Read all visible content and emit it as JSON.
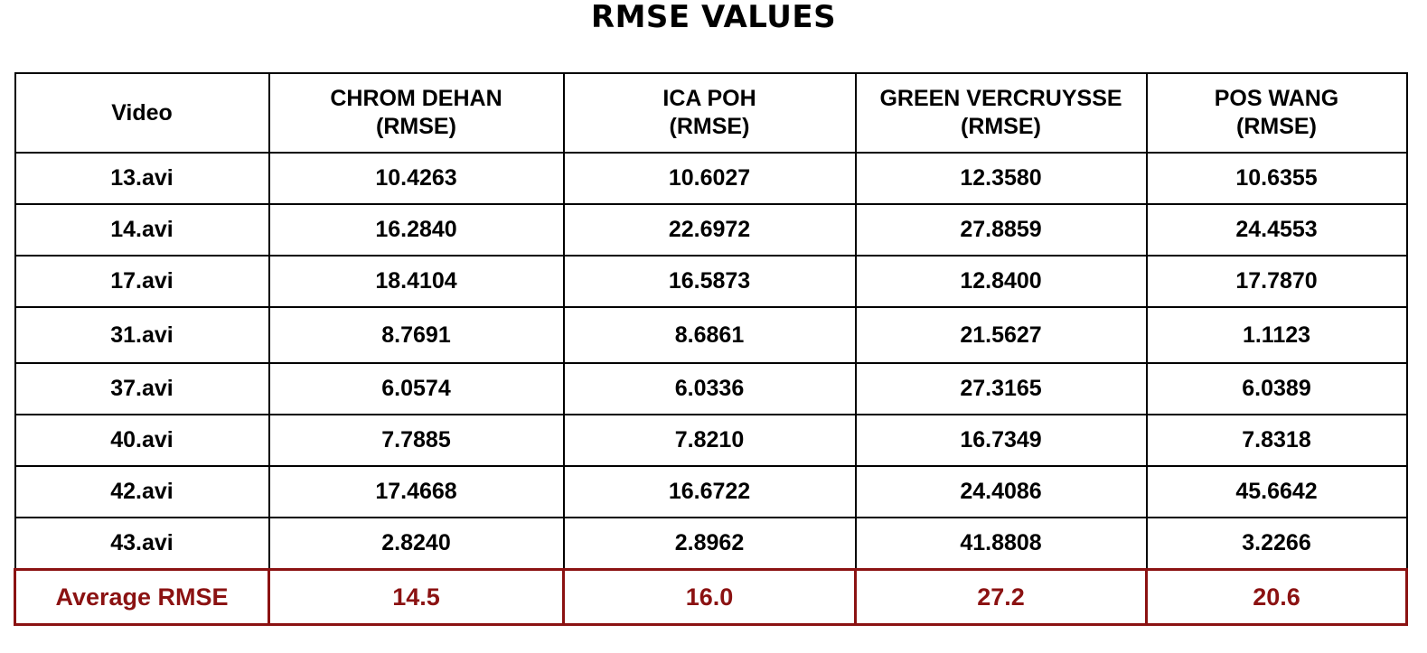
{
  "title": "RMSE VALUES",
  "header": {
    "video": "Video",
    "columns": [
      {
        "name": "CHROM DEHAN",
        "unit": "(RMSE)"
      },
      {
        "name": "ICA POH",
        "unit": "(RMSE)"
      },
      {
        "name": "GREEN VERCRUYSSE",
        "unit": "(RMSE)"
      },
      {
        "name": "POS WANG",
        "unit": "(RMSE)"
      }
    ]
  },
  "rows": [
    {
      "video": "13.avi",
      "values": [
        "10.4263",
        "10.6027",
        "12.3580",
        "10.6355"
      ]
    },
    {
      "video": "14.avi",
      "values": [
        "16.2840",
        "22.6972",
        "27.8859",
        "24.4553"
      ]
    },
    {
      "video": "17.avi",
      "values": [
        "18.4104",
        "16.5873",
        "12.8400",
        "17.7870"
      ]
    },
    {
      "video": "31.avi",
      "values": [
        "8.7691",
        "8.6861",
        "21.5627",
        "1.1123"
      ]
    },
    {
      "video": "37.avi",
      "values": [
        "6.0574",
        "6.0336",
        "27.3165",
        "6.0389"
      ]
    },
    {
      "video": "40.avi",
      "values": [
        "7.7885",
        "7.8210",
        "16.7349",
        "7.8318"
      ]
    },
    {
      "video": "42.avi",
      "values": [
        "17.4668",
        "16.6722",
        "24.4086",
        "45.6642"
      ]
    },
    {
      "video": "43.avi",
      "values": [
        "2.8240",
        "2.8962",
        "41.8808",
        "3.2266"
      ]
    }
  ],
  "average": {
    "label": "Average RMSE",
    "values": [
      "14.5",
      "16.0",
      "27.2",
      "20.6"
    ]
  },
  "colors": {
    "average_accent": "#8b1212",
    "grid": "#000000"
  }
}
